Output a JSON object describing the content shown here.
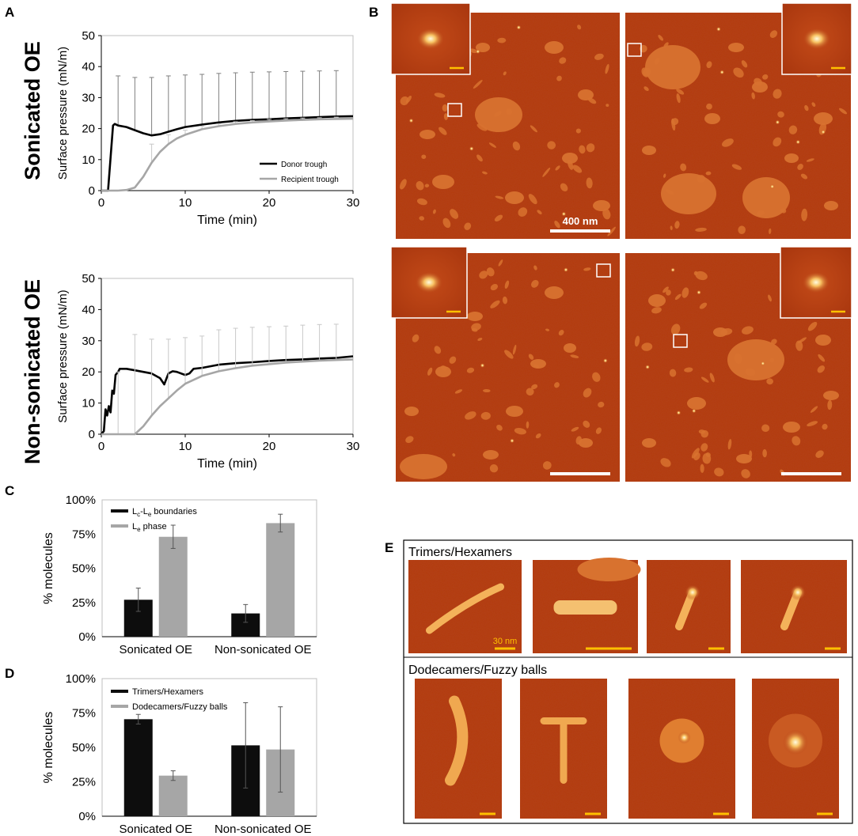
{
  "panels": {
    "A": "A",
    "B": "B",
    "C": "C",
    "D": "D",
    "E": "E"
  },
  "row_labels": [
    "Sonicated OE",
    "Non-sonicated OE"
  ],
  "colors": {
    "donor": "#000000",
    "recipient": "#a6a6a6",
    "bar_dark": "#0d0d0d",
    "bar_gray": "#a6a6a6",
    "afm_bg": "#b33a10",
    "afm_domain": "#d8722f",
    "afm_bright": "#fff2b0",
    "scale_bar": "#ffffff",
    "scale_bar_small": "#ffc000"
  },
  "panel_B": {
    "scale_label": "400 nm",
    "icons": [
      "afm-image",
      "afm-inset",
      "scale-bar"
    ]
  },
  "panel_E": {
    "group1_label": "Trimers/Hexamers",
    "group2_label": "Dodecamers/Fuzzy balls",
    "scale_label": "30 nm"
  },
  "chart_data": [
    {
      "id": "A-top",
      "type": "line",
      "row_label": "Sonicated OE",
      "xlabel": "Time (min)",
      "ylabel": "Surface pressure (mN/m)",
      "xlim": [
        0,
        30
      ],
      "ylim": [
        0,
        50
      ],
      "xticks": [
        0,
        10,
        20,
        30
      ],
      "yticks": [
        0,
        10,
        20,
        30,
        40,
        50
      ],
      "legend_position": "bottom-right",
      "series": [
        {
          "name": "Donor trough",
          "x": [
            0,
            0.8,
            1.0,
            1.2,
            1.4,
            1.6,
            2,
            3,
            4,
            5,
            6,
            7,
            8,
            9,
            10,
            12,
            14,
            16,
            18,
            20,
            22,
            24,
            26,
            28,
            30
          ],
          "y": [
            0,
            0,
            7,
            14,
            21,
            21.5,
            21,
            20.5,
            19.5,
            18.5,
            17.8,
            18.2,
            19,
            19.8,
            20.5,
            21.3,
            22,
            22.5,
            22.8,
            23,
            23.3,
            23.5,
            23.7,
            23.9,
            24
          ],
          "error_x": [
            2,
            4,
            6,
            8,
            10,
            12,
            14,
            16,
            18,
            20,
            22,
            24,
            26,
            28
          ],
          "error_upper": [
            37,
            36.5,
            36.5,
            37,
            37.3,
            37.5,
            37.8,
            38,
            38.2,
            38.3,
            38.4,
            38.5,
            38.6,
            38.7
          ]
        },
        {
          "name": "Recipient trough",
          "x": [
            0,
            2,
            3,
            4,
            5,
            6,
            7,
            8,
            9,
            10,
            12,
            14,
            16,
            18,
            20,
            22,
            24,
            26,
            28,
            30
          ],
          "y": [
            0,
            0,
            0.2,
            1,
            4.5,
            9,
            12.5,
            15,
            16.8,
            18,
            19.8,
            20.8,
            21.5,
            22,
            22.3,
            22.6,
            22.8,
            23,
            23.1,
            23.2
          ],
          "error_x": [
            6,
            8,
            10,
            12,
            14,
            16,
            18,
            20,
            22,
            24,
            26,
            28
          ],
          "error_upper": [
            15,
            18,
            19.5,
            20.8,
            21.5,
            22.2,
            22.6,
            23,
            23.2,
            23.4,
            23.5,
            23.7
          ]
        }
      ]
    },
    {
      "id": "A-bottom",
      "type": "line",
      "row_label": "Non-sonicated OE",
      "xlabel": "Time (min)",
      "ylabel": "Surface pressure (mN/m)",
      "xlim": [
        0,
        30
      ],
      "ylim": [
        0,
        50
      ],
      "xticks": [
        0,
        10,
        20,
        30
      ],
      "yticks": [
        0,
        10,
        20,
        30,
        40,
        50
      ],
      "series": [
        {
          "name": "Donor trough",
          "x": [
            0,
            0.3,
            0.5,
            0.7,
            0.9,
            1.1,
            1.3,
            1.5,
            1.7,
            2,
            2.2,
            3,
            4,
            5,
            6,
            7,
            7.5,
            8,
            8.5,
            9,
            10,
            10.5,
            11,
            12,
            14,
            16,
            18,
            20,
            22,
            24,
            26,
            28,
            30
          ],
          "y": [
            0,
            1,
            8,
            6,
            9,
            7,
            14,
            13,
            19,
            20,
            21,
            21,
            20.5,
            20,
            19.5,
            18,
            16,
            19.5,
            20.2,
            20,
            19,
            19.5,
            21,
            21.3,
            22.3,
            22.8,
            23.1,
            23.5,
            23.8,
            24,
            24.3,
            24.5,
            25
          ]
        },
        {
          "name": "Recipient trough",
          "x": [
            0,
            4,
            5,
            6,
            7,
            8,
            9,
            10,
            12,
            14,
            16,
            18,
            20,
            22,
            24,
            26,
            28,
            30
          ],
          "y": [
            0,
            0,
            2.5,
            6,
            9,
            11.5,
            14,
            16.2,
            18.7,
            20.2,
            21.2,
            22,
            22.5,
            23,
            23.3,
            23.6,
            23.8,
            24
          ],
          "error_x": [
            2,
            4,
            6,
            8,
            10,
            12,
            14,
            16,
            18,
            20,
            22,
            24,
            26,
            28
          ],
          "error_upper": [
            20,
            32,
            30.5,
            30.5,
            31,
            31.5,
            33.5,
            34,
            34.3,
            34.5,
            34.7,
            35,
            35.2,
            35.3
          ]
        }
      ]
    },
    {
      "id": "C",
      "type": "bar",
      "categories": [
        "Sonicated OE",
        "Non-sonicated OE"
      ],
      "ylabel": "% molecules",
      "ylim": [
        0,
        100
      ],
      "yticks": [
        "0%",
        "25%",
        "50%",
        "75%",
        "100%"
      ],
      "legend_position": "top-left",
      "series": [
        {
          "name": "Lc-Le boundaries",
          "name_base": "L",
          "name_sub1": "c",
          "name_mid": "-L",
          "name_sub2": "e",
          "name_tail": " boundaries",
          "values": [
            27,
            17
          ],
          "errors": [
            8.5,
            6.5
          ]
        },
        {
          "name": "Le phase",
          "name_base": "L",
          "name_sub1": "e",
          "name_tail": " phase",
          "values": [
            73,
            83
          ],
          "errors": [
            8.5,
            6.5
          ]
        }
      ]
    },
    {
      "id": "D",
      "type": "bar",
      "categories": [
        "Sonicated OE",
        "Non-sonicated OE"
      ],
      "ylabel": "% molecules",
      "ylim": [
        0,
        100
      ],
      "yticks": [
        "0%",
        "25%",
        "50%",
        "75%",
        "100%"
      ],
      "legend_position": "top-left",
      "series": [
        {
          "name": "Trimers/Hexamers",
          "values": [
            70.5,
            51.5
          ],
          "errors": [
            3.5,
            31
          ]
        },
        {
          "name": "Dodecamers/Fuzzy balls",
          "values": [
            29.5,
            48.5
          ],
          "errors": [
            3.5,
            31
          ]
        }
      ]
    }
  ]
}
